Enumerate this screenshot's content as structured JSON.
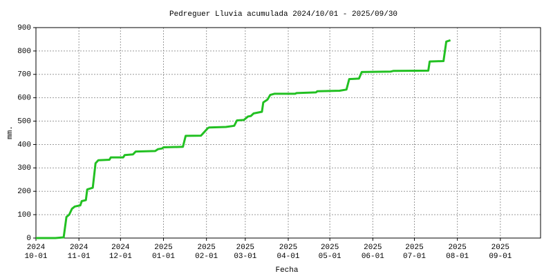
{
  "chart_data": {
    "type": "line",
    "title": "Pedreguer Lluvia acumulada 2024/10/01 - 2025/09/30",
    "xlabel": "Fecha",
    "ylabel": "mm.",
    "x": [
      "2024-10-01",
      "2024-10-15",
      "2024-10-21",
      "2024-10-23",
      "2024-10-25",
      "2024-10-27",
      "2024-10-29",
      "2024-11-02",
      "2024-11-03",
      "2024-11-06",
      "2024-11-07",
      "2024-11-11",
      "2024-11-13",
      "2024-11-15",
      "2024-11-23",
      "2024-11-24",
      "2024-12-03",
      "2024-12-04",
      "2024-12-10",
      "2024-12-12",
      "2024-12-26",
      "2024-12-28",
      "2024-12-31",
      "2025-01-01",
      "2025-01-15",
      "2025-01-17",
      "2025-01-28",
      "2025-02-02",
      "2025-02-03",
      "2025-02-15",
      "2025-02-21",
      "2025-02-23",
      "2025-02-28",
      "2025-03-03",
      "2025-03-05",
      "2025-03-07",
      "2025-03-13",
      "2025-03-14",
      "2025-03-17",
      "2025-03-19",
      "2025-03-22",
      "2025-04-06",
      "2025-04-07",
      "2025-04-21",
      "2025-04-22",
      "2025-05-08",
      "2025-05-13",
      "2025-05-15",
      "2025-05-22",
      "2025-05-24",
      "2025-06-14",
      "2025-06-16",
      "2025-07-11",
      "2025-07-12",
      "2025-07-22",
      "2025-07-24",
      "2025-07-27"
    ],
    "series": [
      {
        "color": "#22c022",
        "values": [
          0,
          0,
          3,
          90,
          100,
          125,
          135,
          140,
          158,
          162,
          208,
          215,
          320,
          333,
          335,
          345,
          345,
          355,
          358,
          370,
          372,
          380,
          383,
          388,
          390,
          437,
          438,
          470,
          473,
          475,
          480,
          503,
          505,
          520,
          522,
          533,
          540,
          580,
          592,
          612,
          617,
          617,
          620,
          623,
          628,
          630,
          635,
          680,
          682,
          710,
          712,
          715,
          716,
          755,
          757,
          840,
          846
        ]
      }
    ],
    "xlim": [
      "2024-10-01",
      "2025-09-30"
    ],
    "xticks": [
      {
        "value": "2024-10-01",
        "label": [
          "2024",
          "10-01"
        ]
      },
      {
        "value": "2024-11-01",
        "label": [
          "2024",
          "11-01"
        ]
      },
      {
        "value": "2024-12-01",
        "label": [
          "2024",
          "12-01"
        ]
      },
      {
        "value": "2025-01-01",
        "label": [
          "2025",
          "01-01"
        ]
      },
      {
        "value": "2025-02-01",
        "label": [
          "2025",
          "02-01"
        ]
      },
      {
        "value": "2025-03-01",
        "label": [
          "2025",
          "03-01"
        ]
      },
      {
        "value": "2025-04-01",
        "label": [
          "2025",
          "04-01"
        ]
      },
      {
        "value": "2025-05-01",
        "label": [
          "2025",
          "05-01"
        ]
      },
      {
        "value": "2025-06-01",
        "label": [
          "2025",
          "06-01"
        ]
      },
      {
        "value": "2025-07-01",
        "label": [
          "2025",
          "07-01"
        ]
      },
      {
        "value": "2025-08-01",
        "label": [
          "2025",
          "08-01"
        ]
      },
      {
        "value": "2025-09-01",
        "label": [
          "2025",
          "09-01"
        ]
      }
    ],
    "ylim": [
      0,
      900
    ],
    "yticks": [
      0,
      100,
      200,
      300,
      400,
      500,
      600,
      700,
      800,
      900
    ],
    "grid": true
  }
}
